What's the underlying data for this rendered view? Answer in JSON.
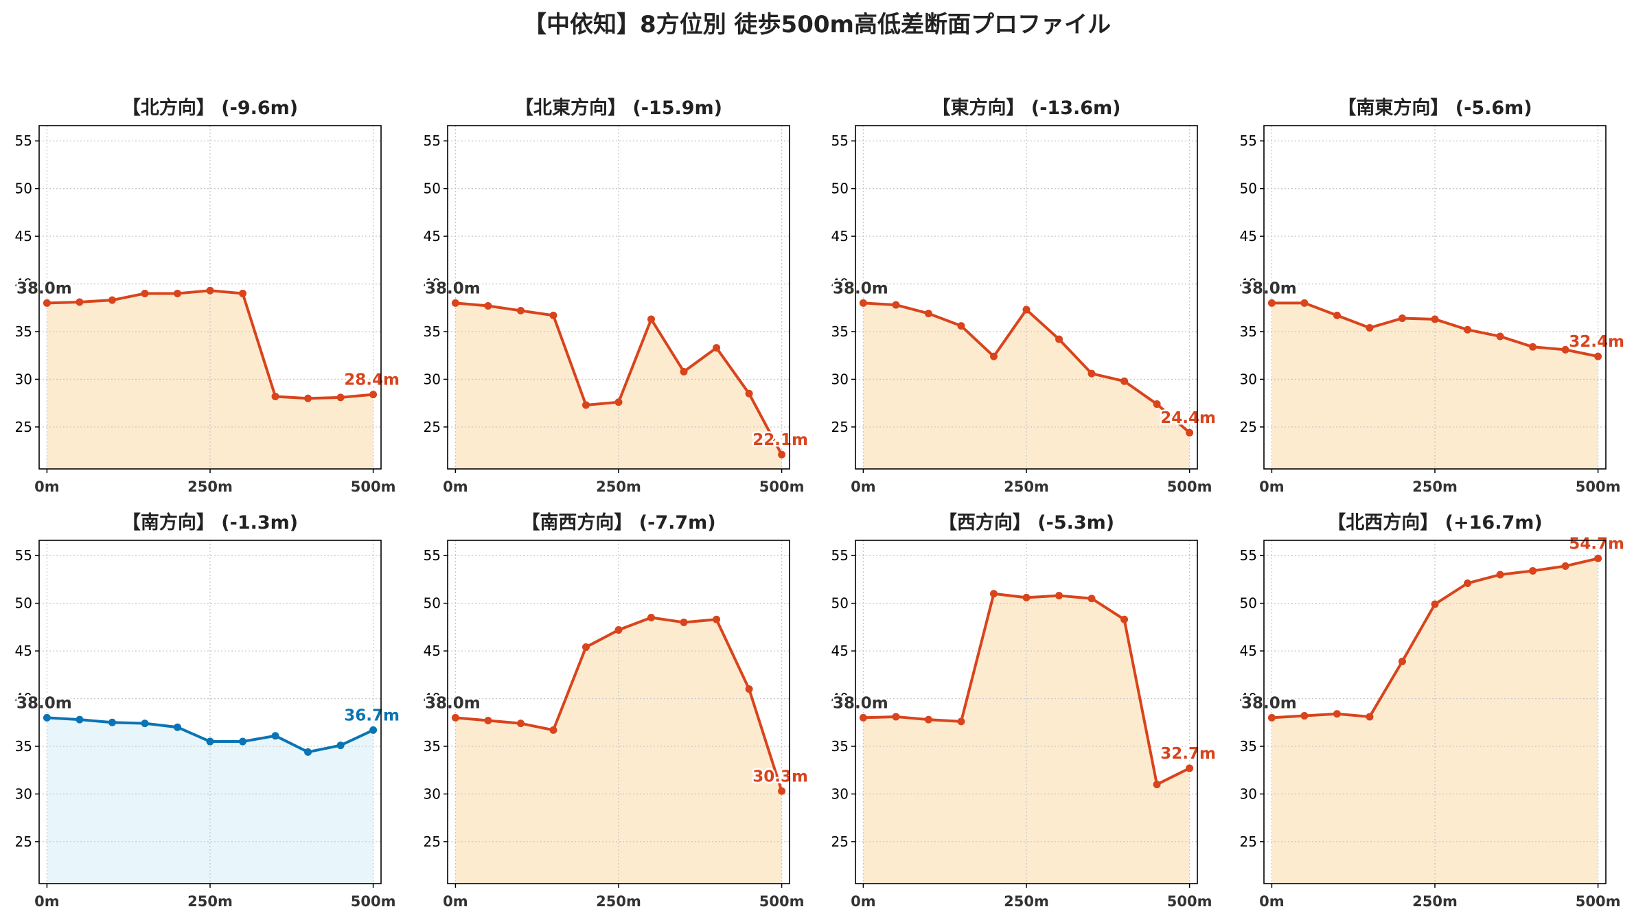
{
  "suptitle": "【中依知】8方位別 徒歩500m高低差断面プロファイル",
  "colors": {
    "down": "#d9441c",
    "down_fill": "#fdebd0",
    "up": "#0a74b5",
    "up_fill": "#e8f6fc",
    "grid": "#c8c8c8",
    "tick_text": "#333333",
    "start_label": "#333333"
  },
  "chart_data": [
    {
      "type": "area",
      "title": "【北方向】 (-9.6m)",
      "start_label": "38.0m",
      "end_label": "28.4m",
      "style": "down",
      "x": [
        0,
        50,
        100,
        150,
        200,
        250,
        300,
        350,
        400,
        450,
        500
      ],
      "y": [
        38.0,
        38.1,
        38.3,
        39.0,
        39.0,
        39.3,
        39.0,
        28.2,
        28.0,
        28.1,
        28.4
      ],
      "xticks": [
        0,
        250,
        500
      ],
      "xtick_labels": [
        "0m",
        "250m",
        "500m"
      ],
      "yticks": [
        25,
        30,
        35,
        40,
        45,
        50,
        55
      ],
      "ytick_labels": [
        "25",
        "30",
        "35",
        "40",
        "45",
        "50",
        "55"
      ],
      "ylim": [
        20.6,
        56.6
      ],
      "xlim": [
        -12,
        512
      ],
      "grid": true
    },
    {
      "type": "area",
      "title": "【北東方向】 (-15.9m)",
      "start_label": "38.0m",
      "end_label": "22.1m",
      "style": "down",
      "x": [
        0,
        50,
        100,
        150,
        200,
        250,
        300,
        350,
        400,
        450,
        500
      ],
      "y": [
        38.0,
        37.7,
        37.2,
        36.7,
        27.3,
        27.6,
        36.3,
        30.8,
        33.3,
        28.5,
        22.1
      ],
      "xticks": [
        0,
        250,
        500
      ],
      "xtick_labels": [
        "0m",
        "250m",
        "500m"
      ],
      "yticks": [
        25,
        30,
        35,
        40,
        45,
        50,
        55
      ],
      "ytick_labels": [
        "25",
        "30",
        "35",
        "40",
        "45",
        "50",
        "55"
      ],
      "ylim": [
        20.6,
        56.6
      ],
      "xlim": [
        -12,
        512
      ],
      "grid": true
    },
    {
      "type": "area",
      "title": "【東方向】 (-13.6m)",
      "start_label": "38.0m",
      "end_label": "24.4m",
      "style": "down",
      "x": [
        0,
        50,
        100,
        150,
        200,
        250,
        300,
        350,
        400,
        450,
        500
      ],
      "y": [
        38.0,
        37.8,
        36.9,
        35.6,
        32.4,
        37.3,
        34.2,
        30.6,
        29.8,
        27.4,
        24.4
      ],
      "xticks": [
        0,
        250,
        500
      ],
      "xtick_labels": [
        "0m",
        "250m",
        "500m"
      ],
      "yticks": [
        25,
        30,
        35,
        40,
        45,
        50,
        55
      ],
      "ytick_labels": [
        "25",
        "30",
        "35",
        "40",
        "45",
        "50",
        "55"
      ],
      "ylim": [
        20.6,
        56.6
      ],
      "xlim": [
        -12,
        512
      ],
      "grid": true
    },
    {
      "type": "area",
      "title": "【南東方向】 (-5.6m)",
      "start_label": "38.0m",
      "end_label": "32.4m",
      "style": "down",
      "x": [
        0,
        50,
        100,
        150,
        200,
        250,
        300,
        350,
        400,
        450,
        500
      ],
      "y": [
        38.0,
        38.0,
        36.7,
        35.4,
        36.4,
        36.3,
        35.2,
        34.5,
        33.4,
        33.1,
        32.4
      ],
      "xticks": [
        0,
        250,
        500
      ],
      "xtick_labels": [
        "0m",
        "250m",
        "500m"
      ],
      "yticks": [
        25,
        30,
        35,
        40,
        45,
        50,
        55
      ],
      "ytick_labels": [
        "25",
        "30",
        "35",
        "40",
        "45",
        "50",
        "55"
      ],
      "ylim": [
        20.6,
        56.6
      ],
      "xlim": [
        -12,
        512
      ],
      "grid": true
    },
    {
      "type": "area",
      "title": "【南方向】 (-1.3m)",
      "start_label": "38.0m",
      "end_label": "36.7m",
      "style": "up",
      "x": [
        0,
        50,
        100,
        150,
        200,
        250,
        300,
        350,
        400,
        450,
        500
      ],
      "y": [
        38.0,
        37.8,
        37.5,
        37.4,
        37.0,
        35.5,
        35.5,
        36.1,
        34.4,
        35.1,
        36.7
      ],
      "xticks": [
        0,
        250,
        500
      ],
      "xtick_labels": [
        "0m",
        "250m",
        "500m"
      ],
      "yticks": [
        25,
        30,
        35,
        40,
        45,
        50,
        55
      ],
      "ytick_labels": [
        "25",
        "30",
        "35",
        "40",
        "45",
        "50",
        "55"
      ],
      "ylim": [
        20.6,
        56.6
      ],
      "xlim": [
        -12,
        512
      ],
      "grid": true
    },
    {
      "type": "area",
      "title": "【南西方向】 (-7.7m)",
      "start_label": "38.0m",
      "end_label": "30.3m",
      "style": "down",
      "x": [
        0,
        50,
        100,
        150,
        200,
        250,
        300,
        350,
        400,
        450,
        500
      ],
      "y": [
        38.0,
        37.7,
        37.4,
        36.7,
        45.4,
        47.2,
        48.5,
        48.0,
        48.3,
        41.0,
        30.3
      ],
      "xticks": [
        0,
        250,
        500
      ],
      "xtick_labels": [
        "0m",
        "250m",
        "500m"
      ],
      "yticks": [
        25,
        30,
        35,
        40,
        45,
        50,
        55
      ],
      "ytick_labels": [
        "25",
        "30",
        "35",
        "40",
        "45",
        "50",
        "55"
      ],
      "ylim": [
        20.6,
        56.6
      ],
      "xlim": [
        -12,
        512
      ],
      "grid": true
    },
    {
      "type": "area",
      "title": "【西方向】 (-5.3m)",
      "start_label": "38.0m",
      "end_label": "32.7m",
      "style": "down",
      "x": [
        0,
        50,
        100,
        150,
        200,
        250,
        300,
        350,
        400,
        450,
        500
      ],
      "y": [
        38.0,
        38.1,
        37.8,
        37.6,
        51.0,
        50.6,
        50.8,
        50.5,
        48.3,
        31.0,
        32.7
      ],
      "xticks": [
        0,
        250,
        500
      ],
      "xtick_labels": [
        "0m",
        "250m",
        "500m"
      ],
      "yticks": [
        25,
        30,
        35,
        40,
        45,
        50,
        55
      ],
      "ytick_labels": [
        "25",
        "30",
        "35",
        "40",
        "45",
        "50",
        "55"
      ],
      "ylim": [
        20.6,
        56.6
      ],
      "xlim": [
        -12,
        512
      ],
      "grid": true
    },
    {
      "type": "area",
      "title": "【北西方向】 (+16.7m)",
      "start_label": "38.0m",
      "end_label": "54.7m",
      "style": "down",
      "x": [
        0,
        50,
        100,
        150,
        200,
        250,
        300,
        350,
        400,
        450,
        500
      ],
      "y": [
        38.0,
        38.2,
        38.4,
        38.1,
        43.9,
        49.9,
        52.1,
        53.0,
        53.4,
        53.9,
        54.7
      ],
      "xticks": [
        0,
        250,
        500
      ],
      "xtick_labels": [
        "0m",
        "250m",
        "500m"
      ],
      "yticks": [
        25,
        30,
        35,
        40,
        45,
        50,
        55
      ],
      "ytick_labels": [
        "25",
        "30",
        "35",
        "40",
        "45",
        "50",
        "55"
      ],
      "ylim": [
        20.6,
        56.6
      ],
      "xlim": [
        -12,
        512
      ],
      "grid": true
    }
  ]
}
